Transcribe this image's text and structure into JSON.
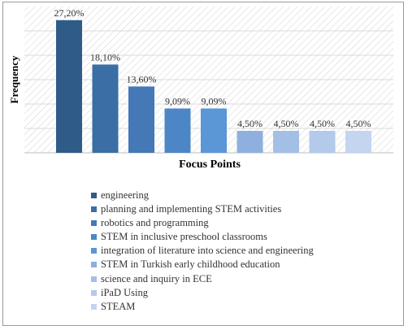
{
  "chart_data": {
    "type": "bar",
    "xlabel": "Focus Points",
    "ylabel": "Frequency",
    "legend_position": "bottom",
    "grid": true,
    "ylim": [
      0,
      30
    ],
    "categories": [
      "engineering",
      "planning and implementing STEM activities",
      "robotics and programming",
      "STEM in inclusive preschool classrooms",
      "integration of literature into science and engineering",
      "STEM in Turkish early childhood education",
      "science and inquiry in ECE",
      "iPaD Using",
      "STEAM"
    ],
    "values": [
      27.2,
      18.1,
      13.6,
      9.09,
      9.09,
      4.5,
      4.5,
      4.5,
      4.5
    ],
    "data_labels": [
      "27,20%",
      "18,10%",
      "13,60%",
      "9,09%",
      "9,09%",
      "4,50%",
      "4,50%",
      "4,50%",
      "4,50%"
    ],
    "colors": [
      "#2f5b88",
      "#3a6ea5",
      "#4478b6",
      "#4d86c6",
      "#5b96d6",
      "#8fb0de",
      "#a4bfe6",
      "#b3caea",
      "#c3d5ef"
    ]
  }
}
